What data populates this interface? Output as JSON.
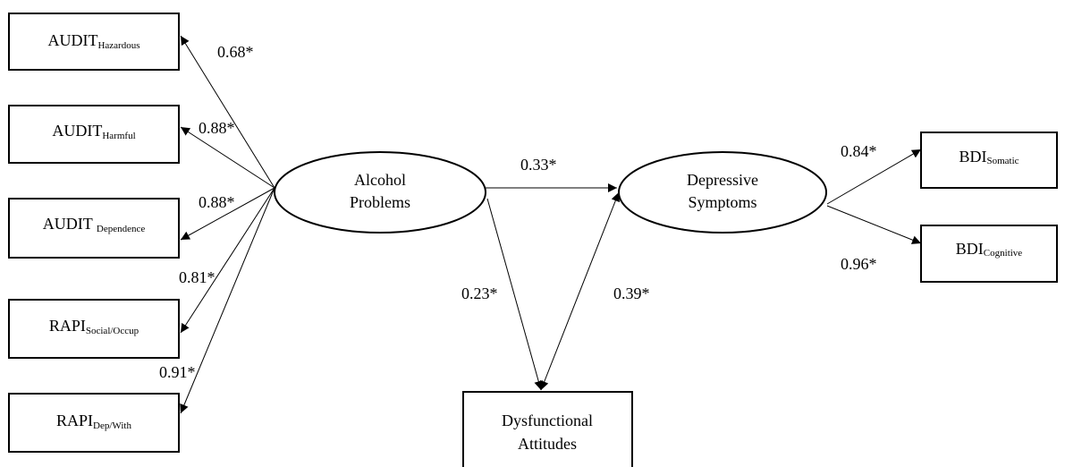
{
  "nodes": [
    {
      "label": "AUDIT",
      "sub": "Hazardous"
    },
    {
      "label": "AUDIT",
      "sub": "Harmful"
    },
    {
      "label": "AUDIT",
      "sub": "Dependence"
    },
    {
      "label": "RAPI",
      "sub": "Social/Occup"
    },
    {
      "label": "RAPI",
      "sub": "Dep/With"
    },
    {
      "lines": [
        "Alcohol",
        "Problems"
      ]
    },
    {
      "lines": [
        "Depressive",
        "Symptoms"
      ]
    },
    {
      "lines": [
        "Dysfunctional",
        "Attitudes"
      ]
    },
    {
      "label": "BDI",
      "sub": "Somatic"
    },
    {
      "label": "BDI",
      "sub": "Cognitive"
    }
  ],
  "edges": [
    {
      "label": "0.68*"
    },
    {
      "label": "0.88*"
    },
    {
      "label": "0.88*"
    },
    {
      "label": "0.81*"
    },
    {
      "label": "0.91*"
    },
    {
      "label": "0.33*"
    },
    {
      "label": "0.23*"
    },
    {
      "label": "0.39*"
    },
    {
      "label": "0.84*"
    },
    {
      "label": "0.96*"
    }
  ]
}
